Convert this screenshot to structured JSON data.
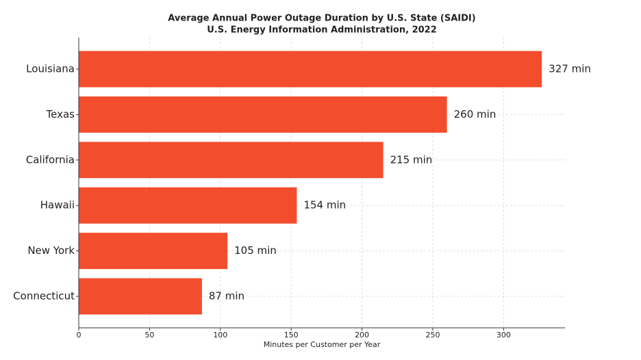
{
  "chart_data": {
    "type": "barh",
    "title": "Average Annual Power Outage Duration by U.S. State (SAIDI)",
    "subtitle": "U.S. Energy Information Administration, 2022",
    "x_label": "Minutes per Customer per Year",
    "categories": [
      "Louisiana",
      "Texas",
      "California",
      "Hawaii",
      "New York",
      "Connecticut"
    ],
    "values": [
      327,
      260,
      215,
      154,
      105,
      87
    ],
    "value_labels": [
      "327 min",
      "260 min",
      "215 min",
      "154 min",
      "105 min",
      "87 min"
    ],
    "color": "#f24e2e",
    "xlim": [
      0,
      343.35
    ],
    "xticks": [
      0,
      50,
      100,
      150,
      200,
      250,
      300
    ],
    "grid": true
  }
}
